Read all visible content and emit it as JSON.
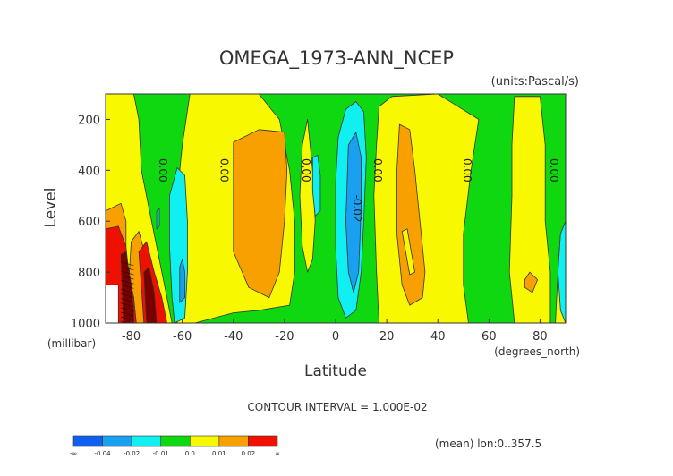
{
  "chart_data": {
    "type": "heatmap",
    "title": "OMEGA_1973-ANN_NCEP",
    "units_label": "(units:Pascal/s)",
    "xlabel": "Latitude",
    "x_unit_label": "(degrees_north)",
    "ylabel": "Level",
    "y_unit_label": "(millibar)",
    "xlim": [
      -90,
      90
    ],
    "ylim": [
      1000,
      100
    ],
    "x_ticks": [
      -80,
      -60,
      -40,
      -20,
      0,
      20,
      40,
      60,
      80
    ],
    "x_tick_labels": [
      "-80",
      "-60",
      "-40",
      "-20",
      "0",
      "20",
      "40",
      "60",
      "80"
    ],
    "y_ticks": [
      200,
      400,
      600,
      800,
      1000
    ],
    "y_tick_labels": [
      "200",
      "400",
      "600",
      "800",
      "1000"
    ],
    "contour_labels": [
      {
        "text": "0.00",
        "lat": -69,
        "level": 400
      },
      {
        "text": "0.00",
        "lat": -45,
        "level": 400
      },
      {
        "text": "0.00",
        "lat": -13,
        "level": 400
      },
      {
        "text": "-0.02",
        "lat": 7,
        "level": 550
      },
      {
        "text": "0.00",
        "lat": 15,
        "level": 400
      },
      {
        "text": "0.00",
        "lat": 50,
        "level": 400
      },
      {
        "text": "0.00",
        "lat": 84,
        "level": 400
      }
    ],
    "contour_interval_text": "CONTOUR INTERVAL = 1.000E-02",
    "footer_text": "(mean) lon:0..357.5",
    "colorbar": {
      "colors": [
        "#1060f0",
        "#1aa0f0",
        "#10f0f0",
        "#10d810",
        "#f8f800",
        "#f8a000",
        "#f01000"
      ],
      "labels": [
        "-∞",
        "-0.04",
        "-0.02",
        "-0.01",
        "0.0",
        "0.01",
        "0.02",
        "∞"
      ]
    },
    "regions": [
      {
        "level": "pos1",
        "color": "#f8f800",
        "polygons": [
          [
            [
              -90,
              100
            ],
            [
              -79,
              100
            ],
            [
              -77,
              200
            ],
            [
              -76,
              400
            ],
            [
              -73,
              550
            ],
            [
              -70,
              700
            ],
            [
              -67,
              850
            ],
            [
              -64,
              1000
            ],
            [
              -90,
              1000
            ]
          ],
          [
            [
              -57,
              100
            ],
            [
              -30,
              100
            ],
            [
              -22,
              200
            ],
            [
              -18,
              400
            ],
            [
              -16,
              600
            ],
            [
              -16,
              800
            ],
            [
              -18,
              930
            ],
            [
              -30,
              950
            ],
            [
              -40,
              960
            ],
            [
              -55,
              1000
            ],
            [
              -62,
              1000
            ],
            [
              -62,
              800
            ],
            [
              -62,
              500
            ],
            [
              -60,
              300
            ]
          ],
          [
            [
              -11,
              200
            ],
            [
              -9,
              400
            ],
            [
              -8,
              600
            ],
            [
              -9,
              750
            ],
            [
              -11,
              800
            ],
            [
              -13,
              700
            ],
            [
              -14,
              500
            ],
            [
              -13,
              300
            ]
          ],
          [
            [
              17,
              150
            ],
            [
              22,
              110
            ],
            [
              40,
              100
            ],
            [
              56,
              200
            ],
            [
              53,
              400
            ],
            [
              50,
              650
            ],
            [
              50,
              850
            ],
            [
              52,
              1000
            ],
            [
              17,
              1000
            ],
            [
              16,
              800
            ],
            [
              15,
              500
            ],
            [
              16,
              300
            ]
          ],
          [
            [
              70,
              110
            ],
            [
              80,
              110
            ],
            [
              82,
              300
            ],
            [
              82,
              600
            ],
            [
              84,
              800
            ],
            [
              84,
              1000
            ],
            [
              70,
              1000
            ],
            [
              68,
              800
            ],
            [
              69,
              500
            ],
            [
              69,
              300
            ]
          ],
          [
            [
              86,
              1000
            ],
            [
              87,
              800
            ],
            [
              88,
              650
            ],
            [
              90,
              600
            ],
            [
              90,
              1000
            ]
          ]
        ]
      },
      {
        "level": "pos2",
        "color": "#f8a000",
        "polygons": [
          [
            [
              -90,
              560
            ],
            [
              -84,
              530
            ],
            [
              -82,
              600
            ],
            [
              -82,
              700
            ],
            [
              -84,
              750
            ],
            [
              -90,
              800
            ]
          ],
          [
            [
              -80,
              680
            ],
            [
              -77,
              640
            ],
            [
              -74,
              750
            ],
            [
              -73,
              900
            ],
            [
              -74,
              1000
            ],
            [
              -82,
              1000
            ],
            [
              -81,
              850
            ]
          ],
          [
            [
              -40,
              290
            ],
            [
              -30,
              240
            ],
            [
              -20,
              250
            ],
            [
              -19,
              400
            ],
            [
              -20,
              600
            ],
            [
              -22,
              800
            ],
            [
              -26,
              900
            ],
            [
              -34,
              860
            ],
            [
              -40,
              720
            ]
          ],
          [
            [
              25,
              220
            ],
            [
              29,
              240
            ],
            [
              31,
              400
            ],
            [
              33,
              600
            ],
            [
              35,
              800
            ],
            [
              34,
              900
            ],
            [
              29,
              930
            ],
            [
              26,
              850
            ],
            [
              24,
              650
            ],
            [
              24,
              400
            ]
          ],
          [
            [
              74,
              830
            ],
            [
              76,
              800
            ],
            [
              79,
              830
            ],
            [
              77,
              880
            ],
            [
              74,
              860
            ]
          ]
        ]
      },
      {
        "level": "pos3",
        "color": "#f01000",
        "polygons": [
          [
            [
              -90,
              630
            ],
            [
              -85,
              620
            ],
            [
              -82,
              700
            ],
            [
              -81,
              800
            ],
            [
              -79,
              900
            ],
            [
              -78,
              1000
            ],
            [
              -90,
              1000
            ]
          ],
          [
            [
              -77,
              720
            ],
            [
              -74,
              680
            ],
            [
              -71,
              800
            ],
            [
              -68,
              900
            ],
            [
              -66,
              1000
            ],
            [
              -75,
              1000
            ],
            [
              -76,
              860
            ]
          ]
        ]
      },
      {
        "level": "neg1",
        "color": "#10f0f0",
        "polygons": [
          [
            [
              -65,
              500
            ],
            [
              -62,
              390
            ],
            [
              -59,
              420
            ],
            [
              -58,
              600
            ],
            [
              -58,
              800
            ],
            [
              -59,
              980
            ],
            [
              -63,
              1000
            ],
            [
              -64,
              900
            ],
            [
              -65,
              700
            ]
          ],
          [
            [
              -9,
              350
            ],
            [
              -7,
              340
            ],
            [
              -6,
              420
            ],
            [
              -6,
              560
            ],
            [
              -8,
              580
            ],
            [
              -9,
              480
            ]
          ],
          [
            [
              1,
              270
            ],
            [
              4,
              160
            ],
            [
              8,
              130
            ],
            [
              11,
              170
            ],
            [
              12,
              350
            ],
            [
              11,
              600
            ],
            [
              10,
              800
            ],
            [
              8,
              950
            ],
            [
              4,
              980
            ],
            [
              1,
              900
            ],
            [
              0,
              700
            ],
            [
              0,
              450
            ]
          ],
          [
            [
              -70,
              560
            ],
            [
              -69,
              550
            ],
            [
              -69,
              620
            ],
            [
              -70,
              630
            ]
          ],
          [
            [
              88,
              650
            ],
            [
              90,
              600
            ],
            [
              90,
              1000
            ],
            [
              88,
              950
            ],
            [
              87,
              800
            ]
          ]
        ]
      },
      {
        "level": "neg2",
        "color": "#1aa0f0",
        "polygons": [
          [
            [
              -61,
              780
            ],
            [
              -60,
              750
            ],
            [
              -59,
              800
            ],
            [
              -59,
              900
            ],
            [
              -61,
              920
            ]
          ],
          [
            [
              5,
              300
            ],
            [
              8,
              250
            ],
            [
              10,
              350
            ],
            [
              10,
              550
            ],
            [
              9,
              800
            ],
            [
              7,
              880
            ],
            [
              5,
              800
            ],
            [
              4,
              600
            ]
          ]
        ]
      },
      {
        "level": "spike",
        "color": "#f8f800",
        "polygons": [
          [
            [
              26,
              640
            ],
            [
              28,
              630
            ],
            [
              31,
              800
            ],
            [
              29,
              810
            ]
          ]
        ]
      },
      {
        "level": "dark",
        "color": "#7a0000",
        "polygons": [
          [
            [
              -84,
              730
            ],
            [
              -82,
              720
            ],
            [
              -80,
              850
            ],
            [
              -79,
              950
            ],
            [
              -79,
              1000
            ],
            [
              -83,
              1000
            ]
          ],
          [
            [
              -75,
              800
            ],
            [
              -73,
              780
            ],
            [
              -71,
              880
            ],
            [
              -70,
              1000
            ],
            [
              -74,
              1000
            ]
          ]
        ]
      },
      {
        "level": "undef",
        "color": "#ffffff",
        "polygons": [
          [
            [
              -90,
              850
            ],
            [
              -85,
              850
            ],
            [
              -85,
              1000
            ],
            [
              -90,
              1000
            ]
          ]
        ]
      }
    ]
  }
}
